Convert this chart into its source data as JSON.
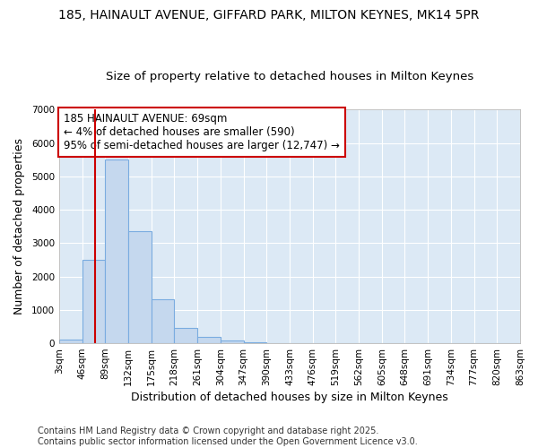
{
  "title_line1": "185, HAINAULT AVENUE, GIFFARD PARK, MILTON KEYNES, MK14 5PR",
  "title_line2": "Size of property relative to detached houses in Milton Keynes",
  "xlabel": "Distribution of detached houses by size in Milton Keynes",
  "ylabel": "Number of detached properties",
  "bar_values": [
    100,
    2500,
    5500,
    3350,
    1310,
    460,
    185,
    90,
    35,
    0,
    0,
    0,
    0,
    0,
    0,
    0,
    0,
    0,
    0,
    0
  ],
  "bin_labels": [
    "3sqm",
    "46sqm",
    "89sqm",
    "132sqm",
    "175sqm",
    "218sqm",
    "261sqm",
    "304sqm",
    "347sqm",
    "390sqm",
    "433sqm",
    "476sqm",
    "519sqm",
    "562sqm",
    "605sqm",
    "648sqm",
    "691sqm",
    "734sqm",
    "777sqm",
    "820sqm",
    "863sqm"
  ],
  "bar_color": "#c5d8ee",
  "bar_edge_color": "#7aace0",
  "chart_bg_color": "#dce9f5",
  "figure_bg_color": "#ffffff",
  "grid_color": "#ffffff",
  "vline_x": 1.54,
  "vline_color": "#cc0000",
  "annotation_text": "185 HAINAULT AVENUE: 69sqm\n← 4% of detached houses are smaller (590)\n95% of semi-detached houses are larger (12,747) →",
  "annotation_box_color": "#ffffff",
  "annotation_box_edge": "#cc0000",
  "ylim": [
    0,
    7000
  ],
  "yticks": [
    0,
    1000,
    2000,
    3000,
    4000,
    5000,
    6000,
    7000
  ],
  "footer_text": "Contains HM Land Registry data © Crown copyright and database right 2025.\nContains public sector information licensed under the Open Government Licence v3.0.",
  "title_fontsize": 10,
  "subtitle_fontsize": 9.5,
  "axis_label_fontsize": 9,
  "tick_fontsize": 7.5,
  "annotation_fontsize": 8.5,
  "footer_fontsize": 7
}
